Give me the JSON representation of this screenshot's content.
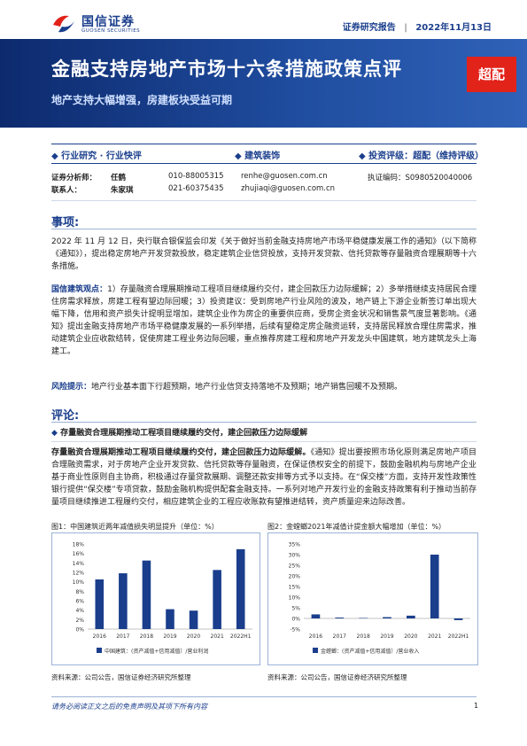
{
  "header": {
    "logo_cn": "国信证券",
    "logo_en": "GUOSEN SECURITIES",
    "report_type": "证券研究报告",
    "date": "2022年11月13日"
  },
  "banner": {
    "title": "金融支持房地产市场十六条措施政策点评",
    "subtitle": "地产支持大幅增强，房建板块受益可期",
    "rating_badge": "超配"
  },
  "info_bar": {
    "category": "行业研究 · 行业快评",
    "industry": "建筑装饰",
    "rating": "投资评级：超配（维持评级）"
  },
  "analysts": [
    {
      "role": "证券分析师：",
      "name": "任鹤",
      "phone": "010-88005315",
      "email": "renhe@guosen.com.cn",
      "cert": "执证编码：S0980520040006"
    },
    {
      "role": "联系人：",
      "name": "朱家琪",
      "phone": "021-60375435",
      "email": "zhujiaqi@guosen.com.cn",
      "cert": ""
    }
  ],
  "shixiang": {
    "heading": "事项:",
    "p1": "2022 年 11 月 12 日，央行联合银保监会印发《关于做好当前金融支持房地产市场平稳健康发展工作的通知》（以下简称《通知》），提出稳定房地产开发贷款投放，稳定建筑企业信贷投放，支持开发贷款、信托贷款等存量融资合理展期等十六条措施。",
    "p2_label": "国信建筑观点：",
    "p2": "1）存量融资合理展期推动工程项目继续履约交付，建企回款压力边际缓解；2）多举措继续支持居民合理住房需求释放，房建工程有望边际回暖；3）投资建议：受到房地产行业风险的波及，地产链上下游企业新签订单出现大幅下降，信用和资产损失计提明显增加，建筑企业作为房企的重要供应商，受房企资金状况和销售景气度显著影响。《通知》提出金融支持房地产市场平稳健康发展的一系列举措，后续有望稳定房企融资运转，支持居民释放合理住房需求，推动建筑企业应收款结转，促使房建工程业务边际回暖，重点推荐房建工程和房地产开发龙头中国建筑，地方建筑龙头上海建工。",
    "p3_label": "风险提示：",
    "p3": "地产行业基本面下行超预期，地产行业信贷支持落地不及预期；地产销售回暖不及预期。"
  },
  "pinglun": {
    "heading": "评论:",
    "bullet": "存量融资合理展期推动工程项目继续履约交付，建企回款压力边际缓解",
    "p1_bold": "存量融资合理展期推动工程项目继续履约交付，建企回款压力边际缓解。",
    "p1": "《通知》提出要按照市场化原则满足房地产项目合理融资需求，对于房地产企业开发贷款、信托贷款等存量融资，在保证债权安全的前提下，鼓励金融机构与房地产企业基于商业性原则自主协商，积极通过存量贷款展期、调整还款安排等方式予以支持。在“保交楼”方面，支持开发性政策性银行提供“保交楼”专项贷款，鼓励金融机构提供配套金融支持。一系列对地产开发行业的金融支持政策有利于推动当前存量项目继续推进工程履约交付，相应建筑企业的工程应收账款有望推进结转，资产质量迎来边际改善。"
  },
  "figures": {
    "fig1_title": "图1：中国建筑近两年减值损失明显提升（单位：%）",
    "fig2_title": "图2：金螳螂2021年减值计提金额大幅增加（单位：%）",
    "fig1_source": "资料来源：公司公告，国信证券经济研究所整理",
    "fig2_source": "资料来源：公司公告，国信证券经济研究所整理"
  },
  "chart_data": [
    {
      "type": "bar",
      "categories": [
        "2016",
        "2017",
        "2018",
        "2019",
        "2020",
        "2021",
        "2022H1"
      ],
      "series": [
        {
          "name": "中国建筑：(资产减值+信用减值）/营业利润",
          "values": [
            10.5,
            11.8,
            14.5,
            4.2,
            3.9,
            12.5,
            16.9
          ]
        }
      ],
      "yticks": [
        "0%",
        "2%",
        "4%",
        "6%",
        "8%",
        "10%",
        "12%",
        "14%",
        "16%",
        "18%"
      ],
      "ylim": [
        0,
        18
      ],
      "color": "#1a3e8c"
    },
    {
      "type": "bar",
      "categories": [
        "2016",
        "2017",
        "2018",
        "2019",
        "2020",
        "2021",
        "2022H1"
      ],
      "series": [
        {
          "name": "金螳螂：(资产减值+信用减值）/营业收入",
          "values": [
            1.9,
            0.4,
            0.2,
            0.6,
            1.3,
            30.0,
            -0.8
          ]
        }
      ],
      "yticks": [
        "-5%",
        "0%",
        "5%",
        "10%",
        "15%",
        "20%",
        "25%",
        "30%",
        "35%"
      ],
      "ylim": [
        -5,
        35
      ],
      "color": "#1a3e8c"
    }
  ],
  "footer": {
    "disclaimer": "请务必阅读正文之后的免责声明及其项下所有内容",
    "page": "1"
  }
}
